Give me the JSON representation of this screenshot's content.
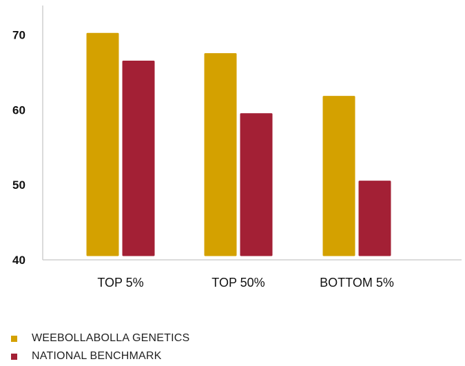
{
  "chart_data": {
    "type": "bar",
    "categories": [
      "TOP 5%",
      "TOP 50%",
      "BOTTOM 5%"
    ],
    "series": [
      {
        "name": "WEEBOLLABOLLA GENETICS",
        "values": [
          70.3,
          67.6,
          61.9
        ],
        "color": "#d4a100"
      },
      {
        "name": "NATIONAL BENCHMARK",
        "values": [
          66.6,
          59.6,
          50.6
        ],
        "color": "#a32035"
      }
    ],
    "yticks": [
      40,
      50,
      60,
      70
    ],
    "ylim": [
      40,
      74
    ],
    "grid": false,
    "legend_position": "bottom-left",
    "title": "",
    "xlabel": "",
    "ylabel": ""
  }
}
